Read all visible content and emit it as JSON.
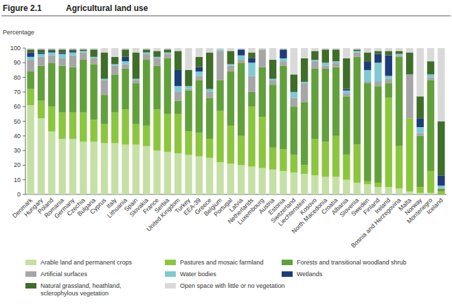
{
  "chart_data": {
    "type": "bar",
    "stacked": true,
    "figure_label": "Figure 2.1",
    "title": "Agricultural land use",
    "y_label": "Percentage",
    "grid": false,
    "legend": "bottom",
    "ylim": [
      0,
      100
    ],
    "yticks": [
      0,
      10,
      20,
      30,
      40,
      50,
      60,
      70,
      80,
      90,
      100
    ],
    "categories": [
      "Denmark",
      "Hungary",
      "Poland",
      "Romania",
      "Germany",
      "Czechia",
      "Bulgaria",
      "Cyprus",
      "Italy",
      "Lithuania",
      "Spain",
      "Slovakia",
      "France",
      "Serbia",
      "United Kingdom",
      "Turkey",
      "EEA-39",
      "Greece",
      "Belgium",
      "Portugal",
      "Latvia",
      "Netherlands",
      "Luxembourg",
      "Austria",
      "Estonia",
      "Switzerland",
      "Liechtenstein",
      "Kosovo",
      "North Macedonia",
      "Croatia",
      "Albania",
      "Slovenia",
      "Sweden",
      "Finland",
      "Ireland",
      "Bosnia and Herzegovina",
      "Malta",
      "Norway",
      "Montenegro",
      "Iceland"
    ],
    "series": [
      {
        "name": "Arable land and permanent crops",
        "color": "#c5e0a5",
        "values": [
          61,
          52,
          43,
          38,
          38,
          36,
          36,
          35,
          35,
          34,
          34,
          33,
          30,
          29,
          28,
          27,
          26,
          25,
          22,
          21,
          20,
          19,
          18,
          17,
          16,
          15,
          14,
          13,
          12,
          12,
          10,
          8,
          7,
          5,
          5,
          4,
          2,
          1,
          1,
          0
        ]
      },
      {
        "name": "Pastures and mosaic farmland",
        "color": "#8cc63e",
        "values": [
          11,
          12,
          17,
          18,
          18,
          20,
          15,
          13,
          21,
          24,
          14,
          14,
          28,
          26,
          27,
          16,
          16,
          13,
          35,
          26,
          20,
          41,
          35,
          15,
          15,
          12,
          6,
          25,
          24,
          28,
          17,
          26,
          2,
          3,
          61,
          29,
          50,
          4,
          15,
          2
        ]
      },
      {
        "name": "Forests and transitional woodland shrub",
        "color": "#62a03c",
        "values": [
          12,
          24,
          30,
          32,
          31,
          36,
          38,
          20,
          26,
          28,
          28,
          45,
          30,
          38,
          9,
          28,
          36,
          28,
          21,
          37,
          50,
          10,
          34,
          43,
          57,
          33,
          43,
          48,
          50,
          47,
          40,
          60,
          67,
          66,
          10,
          61,
          0,
          35,
          62,
          2
        ]
      },
      {
        "name": "Artificial surfaces",
        "color": "#a6a6a6",
        "values": [
          8,
          6,
          5,
          5,
          8,
          5,
          4,
          10,
          6,
          3,
          2,
          4,
          5,
          3,
          6,
          1,
          3,
          4,
          20,
          4,
          2,
          11,
          12,
          3,
          3,
          6,
          13,
          5,
          2,
          3,
          2,
          3,
          1,
          3,
          3,
          1,
          30,
          2,
          2,
          0.5
        ]
      },
      {
        "name": "Water bodies",
        "color": "#7fc9d3",
        "values": [
          2,
          2,
          2,
          3,
          2,
          1,
          1,
          1,
          1,
          2,
          1,
          1,
          1,
          1,
          4,
          2,
          3,
          2,
          1,
          1,
          3,
          9,
          0,
          1,
          2,
          4,
          1,
          1,
          2,
          1,
          2,
          1,
          8,
          13,
          2,
          1,
          0,
          4,
          2,
          1.5
        ]
      },
      {
        "name": "Wetlands",
        "color": "#1d3c78",
        "values": [
          3,
          1,
          1,
          1,
          1,
          0,
          0,
          0,
          0,
          3,
          0,
          0,
          0,
          0,
          11,
          0,
          3,
          0,
          0,
          0,
          4,
          3,
          0,
          0,
          6,
          0,
          0,
          0,
          0,
          0,
          1,
          0,
          6,
          6,
          14,
          0,
          0,
          6,
          0,
          7
        ]
      },
      {
        "name": "Natural grassland, heathland, sclerophylous vegetation",
        "color": "#3f6d2a",
        "values": [
          2,
          2,
          1,
          2,
          1,
          1,
          5,
          18,
          5,
          5,
          18,
          2,
          4,
          2,
          13,
          11,
          7,
          25,
          0,
          9,
          0,
          4,
          0,
          13,
          0,
          12,
          16,
          6,
          9,
          8,
          21,
          1,
          6,
          2,
          3,
          2,
          15,
          15,
          9,
          37
        ]
      },
      {
        "name": "Open space with little or no vegetation",
        "color": "#d9d9d9",
        "values": [
          1,
          1,
          1,
          1,
          1,
          1,
          1,
          3,
          6,
          1,
          3,
          1,
          2,
          1,
          2,
          15,
          6,
          3,
          1,
          2,
          1,
          3,
          1,
          8,
          1,
          18,
          7,
          2,
          1,
          1,
          7,
          1,
          3,
          2,
          2,
          2,
          3,
          33,
          9,
          50
        ]
      }
    ]
  }
}
